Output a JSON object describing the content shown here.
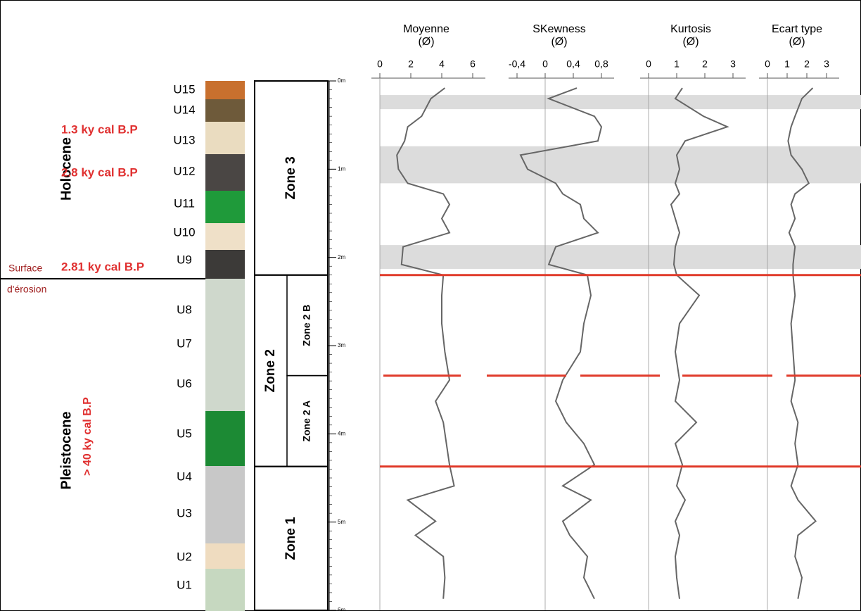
{
  "era_labels": {
    "holocene": "Holocene",
    "pleistocene": "Pleistocene",
    "age_1": "1.3 ky cal B.P",
    "age_2": "2.8 ky cal B.P",
    "age_3": "2.81 ky cal B.P",
    "age_4": "> 40 ky cal B.P",
    "surface_1": "Surface",
    "surface_2": "d'érosion"
  },
  "units": [
    "U15",
    "U14",
    "U13",
    "U12",
    "U11",
    "U10",
    "U9",
    "U8",
    "U7",
    "U6",
    "U5",
    "U4",
    "U3",
    "U2",
    "U1"
  ],
  "depth_axis": {
    "ylim": [
      0,
      6
    ],
    "yticks": [
      {
        "value": 0,
        "label": "0m"
      },
      {
        "value": 1,
        "label": "1m"
      },
      {
        "value": 2,
        "label": "2m"
      },
      {
        "value": 3,
        "label": "3m"
      },
      {
        "value": 4,
        "label": "4m"
      },
      {
        "value": 5,
        "label": "5m"
      },
      {
        "value": 6,
        "label": "6m"
      }
    ]
  },
  "zones": [
    {
      "label": "Zone 3",
      "top": 0,
      "bottom": 2.2
    },
    {
      "label": "Zone 2",
      "top": 2.2,
      "bottom": 4.37
    },
    {
      "label": "Zone 1",
      "top": 4.37,
      "bottom": 6
    }
  ],
  "subzones": [
    {
      "label": "Zone 2 B",
      "top": 2.2,
      "bottom": 3.34
    },
    {
      "label": "Zone 2 A",
      "top": 3.34,
      "bottom": 4.37
    }
  ],
  "gray_bands": [
    [
      0.16,
      0.32
    ],
    [
      0.74,
      1.16
    ],
    [
      1.86,
      2.13
    ]
  ],
  "boundaries": [
    {
      "depth": 2.2,
      "style": "solid"
    },
    {
      "depth": 3.34,
      "style": "dashed"
    },
    {
      "depth": 4.37,
      "style": "solid"
    }
  ],
  "chart_data": [
    {
      "type": "line",
      "title": "Moyenne",
      "subtitle": "(Ø)",
      "color": "#666666",
      "xlim": [
        0,
        6
      ],
      "xticks": [
        0,
        2,
        4,
        6
      ],
      "y": [
        0.08,
        0.2,
        0.4,
        0.52,
        0.68,
        0.84,
        1.0,
        1.16,
        1.28,
        1.4,
        1.56,
        1.72,
        1.88,
        2.08,
        2.2,
        2.43,
        2.75,
        3.07,
        3.39,
        3.63,
        3.87,
        4.11,
        4.35,
        4.59,
        4.75,
        4.99,
        5.15,
        5.39,
        5.63,
        5.87
      ],
      "values": [
        4.2,
        3.3,
        2.7,
        1.8,
        1.6,
        1.1,
        1.2,
        1.8,
        4.1,
        4.5,
        4.0,
        4.5,
        1.5,
        1.4,
        4.1,
        4.0,
        4.0,
        4.2,
        4.5,
        3.6,
        4.1,
        4.3,
        4.5,
        4.8,
        1.8,
        3.6,
        2.3,
        4.1,
        4.2,
        4.1
      ]
    },
    {
      "type": "line",
      "title": "SKewness",
      "subtitle": "(Ø)",
      "color": "#666666",
      "xlim": [
        -0.4,
        0.8
      ],
      "xticks": [
        {
          "value": -0.4,
          "label": "-0,4"
        },
        0,
        {
          "value": 0.4,
          "label": "0,4"
        },
        {
          "value": 0.8,
          "label": "0,8"
        }
      ],
      "y": [
        0.08,
        0.2,
        0.4,
        0.52,
        0.68,
        0.84,
        1.0,
        1.16,
        1.28,
        1.4,
        1.56,
        1.72,
        1.88,
        2.08,
        2.2,
        2.43,
        2.75,
        3.07,
        3.39,
        3.63,
        3.87,
        4.11,
        4.35,
        4.59,
        4.75,
        4.99,
        5.15,
        5.39,
        5.63,
        5.87
      ],
      "values": [
        0.45,
        0.05,
        0.7,
        0.8,
        0.75,
        -0.35,
        -0.25,
        0.15,
        0.25,
        0.5,
        0.55,
        0.75,
        0.15,
        0.05,
        0.6,
        0.65,
        0.55,
        0.5,
        0.25,
        0.15,
        0.3,
        0.55,
        0.7,
        0.25,
        0.65,
        0.25,
        0.35,
        0.6,
        0.55,
        0.7
      ]
    },
    {
      "type": "line",
      "title": "Kurtosis",
      "subtitle": "(Ø)",
      "color": "#666666",
      "xlim": [
        0,
        3
      ],
      "xticks": [
        0,
        1,
        2,
        3
      ],
      "y": [
        0.08,
        0.2,
        0.4,
        0.52,
        0.68,
        0.84,
        1.0,
        1.16,
        1.28,
        1.4,
        1.56,
        1.72,
        1.88,
        2.08,
        2.2,
        2.43,
        2.75,
        3.07,
        3.39,
        3.63,
        3.87,
        4.11,
        4.35,
        4.59,
        4.75,
        4.99,
        5.15,
        5.39,
        5.63,
        5.87
      ],
      "values": [
        1.2,
        0.95,
        1.95,
        2.8,
        1.3,
        1.0,
        1.1,
        0.95,
        1.1,
        0.8,
        0.95,
        1.1,
        0.95,
        0.9,
        1.0,
        1.8,
        1.1,
        0.95,
        1.1,
        0.95,
        1.7,
        0.95,
        1.2,
        1.0,
        1.3,
        0.95,
        1.1,
        0.95,
        1.0,
        1.1
      ]
    },
    {
      "type": "line",
      "title": "Ecart type",
      "subtitle": "(Ø)",
      "color": "#666666",
      "xlim": [
        0,
        3
      ],
      "xticks": [
        0,
        1,
        2,
        3
      ],
      "y": [
        0.08,
        0.2,
        0.4,
        0.52,
        0.68,
        0.84,
        1.0,
        1.16,
        1.28,
        1.4,
        1.56,
        1.72,
        1.88,
        2.08,
        2.2,
        2.43,
        2.75,
        3.07,
        3.39,
        3.63,
        3.87,
        4.11,
        4.35,
        4.59,
        4.75,
        4.99,
        5.15,
        5.39,
        5.63,
        5.87
      ],
      "values": [
        2.3,
        1.75,
        1.4,
        1.2,
        1.05,
        1.2,
        1.75,
        2.1,
        1.4,
        1.2,
        1.4,
        1.1,
        1.4,
        1.3,
        1.3,
        1.4,
        1.2,
        1.3,
        1.4,
        1.2,
        1.55,
        1.4,
        1.55,
        1.2,
        1.55,
        2.45,
        1.55,
        1.4,
        1.75,
        1.55
      ]
    }
  ]
}
